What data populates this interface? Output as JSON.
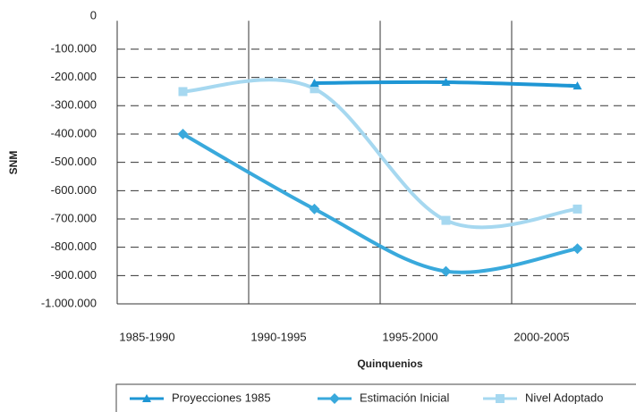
{
  "chart_data": {
    "type": "line",
    "x_label": "Quinquenios",
    "y_label": "SNM",
    "categories": [
      "1985-1990",
      "1990-1995",
      "1995-2000",
      "2000-2005"
    ],
    "series": [
      {
        "name": "Proyecciones 1985",
        "color": "#1e96d4",
        "marker": "triangle",
        "values": [
          null,
          -220000,
          -217000,
          -230000
        ]
      },
      {
        "name": "Estimación Inicial",
        "color": "#39a9dc",
        "marker": "diamond",
        "values": [
          -400000,
          -665000,
          -885000,
          -805000
        ]
      },
      {
        "name": "Nivel Adoptado",
        "color": "#a6d8f0",
        "marker": "square",
        "values": [
          -250000,
          -240000,
          -705000,
          -665000
        ]
      }
    ],
    "ylim": [
      -1000000,
      0
    ],
    "yticks": [
      {
        "value": -1000000,
        "label": "-1.000.000"
      },
      {
        "value": -900000,
        "label": "-900.000"
      },
      {
        "value": -800000,
        "label": "-800.000"
      },
      {
        "value": -700000,
        "label": "-700.000"
      },
      {
        "value": -600000,
        "label": "-600.000"
      },
      {
        "value": -500000,
        "label": "-500.000"
      },
      {
        "value": -400000,
        "label": "-400.000"
      },
      {
        "value": -300000,
        "label": "-300.000"
      },
      {
        "value": -200000,
        "label": "-200.000"
      },
      {
        "value": -100000,
        "label": "-100.000"
      },
      0
    ],
    "grid": true,
    "legend": "bottom"
  }
}
